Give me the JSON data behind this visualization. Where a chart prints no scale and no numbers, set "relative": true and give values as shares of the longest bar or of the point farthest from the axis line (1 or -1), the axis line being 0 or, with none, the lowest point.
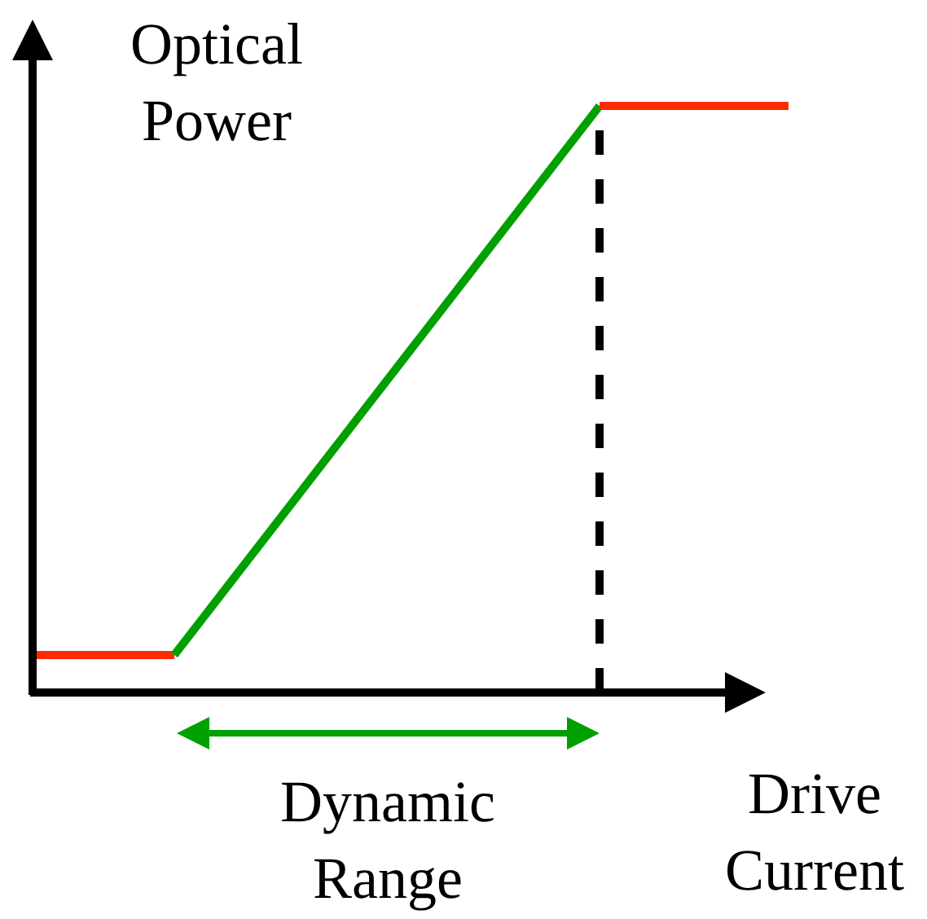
{
  "chart_data": {
    "type": "line",
    "relative": true,
    "xlabel": "Drive Current",
    "ylabel": "Optical Power",
    "line_style": "solid",
    "marker": "none",
    "categories": [
      null,
      null,
      null,
      null,
      null,
      null,
      null,
      null,
      null,
      null,
      null,
      null,
      null,
      null,
      null,
      null,
      null
    ],
    "series": [
      {
        "color": "#ff2a00",
        "values": [
          0.064,
          null,
          null,
          0.064,
          null,
          null,
          null,
          null,
          null,
          null,
          null,
          null,
          null,
          null,
          null,
          null,
          null
        ]
      },
      {
        "color": "#00a000",
        "values": [
          null,
          null,
          null,
          0.064,
          null,
          null,
          null,
          null,
          null,
          null,
          null,
          null,
          1,
          null,
          null,
          null,
          null
        ]
      },
      {
        "color": "#ff2a00",
        "values": [
          null,
          null,
          null,
          null,
          null,
          null,
          null,
          null,
          null,
          null,
          null,
          null,
          1,
          null,
          null,
          null,
          1
        ]
      }
    ],
    "annotations": [
      "Dynamic Range"
    ]
  }
}
